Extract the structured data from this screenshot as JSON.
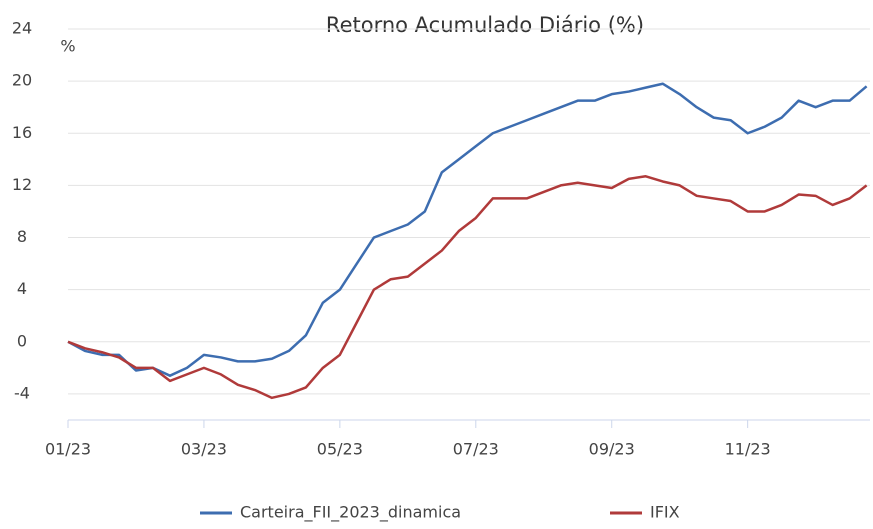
{
  "chart_data": {
    "type": "line",
    "title": "Retorno Acumulado Diário (%)",
    "y_label": "%",
    "x": [
      0,
      0.25,
      0.5,
      0.75,
      1,
      1.25,
      1.5,
      1.75,
      2,
      2.25,
      2.5,
      2.75,
      3,
      3.25,
      3.5,
      3.75,
      4,
      4.25,
      4.5,
      4.75,
      5,
      5.25,
      5.5,
      5.75,
      6,
      6.25,
      6.5,
      6.75,
      7,
      7.25,
      7.5,
      7.75,
      8,
      8.25,
      8.5,
      8.75,
      9,
      9.25,
      9.5,
      9.75,
      10,
      10.25,
      10.5,
      10.75,
      11,
      11.25,
      11.5,
      11.75
    ],
    "series": [
      {
        "name": "Carteira_FII_2023_dinamica",
        "color": "#3d6db0",
        "values": [
          0,
          -0.7,
          -1,
          -1,
          -2.2,
          -2,
          -2.6,
          -2,
          -1,
          -1.2,
          -1.5,
          -1.5,
          -1.3,
          -0.7,
          0.5,
          3,
          4,
          6,
          8,
          8.5,
          9,
          10,
          13,
          14,
          15,
          16,
          16.5,
          17,
          17.5,
          18,
          18.5,
          18.5,
          19,
          19.2,
          19.5,
          19.8,
          19,
          18,
          17.2,
          17,
          16,
          16.5,
          17.2,
          18.5,
          18,
          18.5,
          18.5,
          19.6
        ]
      },
      {
        "name": "IFIX",
        "color": "#b03a3a",
        "values": [
          0,
          -0.5,
          -0.8,
          -1.2,
          -2,
          -2,
          -3,
          -2.5,
          -2,
          -2.5,
          -3.3,
          -3.7,
          -4.3,
          -4,
          -3.5,
          -2,
          -1,
          1.5,
          4,
          4.8,
          5,
          6,
          7,
          8.5,
          9.5,
          11,
          11,
          11,
          11.5,
          12,
          12.2,
          12,
          11.8,
          12.5,
          12.7,
          12.3,
          12,
          11.2,
          11,
          10.8,
          10,
          10,
          10.5,
          11.3,
          11.2,
          10.5,
          11,
          12
        ]
      }
    ],
    "xlim": [
      0,
      11.8
    ],
    "xticks": [
      {
        "value": 0,
        "label": "01/23"
      },
      {
        "value": 2,
        "label": "03/23"
      },
      {
        "value": 4,
        "label": "05/23"
      },
      {
        "value": 6,
        "label": "07/23"
      },
      {
        "value": 8,
        "label": "09/23"
      },
      {
        "value": 10,
        "label": "11/23"
      }
    ],
    "ylim": [
      -6,
      24
    ],
    "yticks": [
      -4,
      0,
      4,
      8,
      12,
      16,
      20,
      24
    ],
    "grid": true,
    "legend": "bottom"
  }
}
